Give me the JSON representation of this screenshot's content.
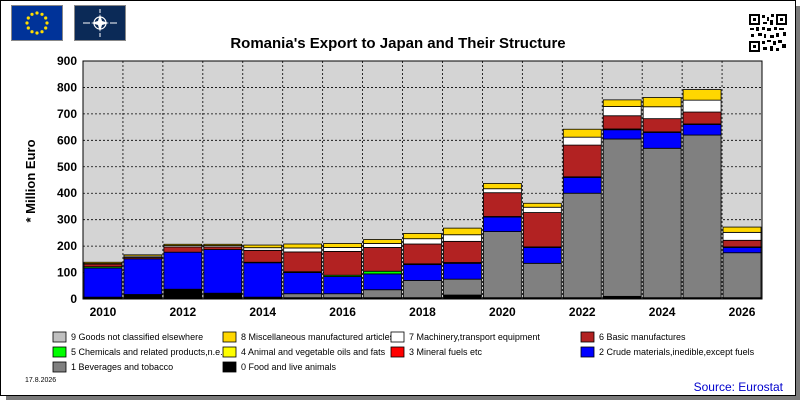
{
  "header": {
    "flags": [
      "eu-flag-icon",
      "nato-flag-icon"
    ],
    "qr": "qr-code-icon"
  },
  "footer": {
    "date": "17.8.2026",
    "source": "Source: Eurostat"
  },
  "colors": {
    "0": "#000000",
    "1": "#808080",
    "2": "#0000ff",
    "3": "#ff0000",
    "4": "#ffff00",
    "5": "#00ff00",
    "6": "#b22222",
    "7": "#ffffff",
    "8": "#ffd700",
    "9": "#c0c0c0"
  },
  "chart_data": {
    "type": "bar",
    "stacked": true,
    "title": "Romania's Export to Japan and Their Structure",
    "ylabel": "* Million Euro",
    "ylim": [
      0,
      900
    ],
    "yticks": [
      0,
      100,
      200,
      300,
      400,
      500,
      600,
      700,
      800,
      900
    ],
    "grid": true,
    "legend_position": "bottom",
    "categories": [
      "2010",
      "2011",
      "2012",
      "2013",
      "2014",
      "2015",
      "2016",
      "2017",
      "2018",
      "2019",
      "2020",
      "2021",
      "2022",
      "2023",
      "2024",
      "2025",
      "2026"
    ],
    "x_tick_labels": [
      "2010",
      "2012",
      "2014",
      "2016",
      "2018",
      "2020",
      "2022",
      "2024",
      "2026"
    ],
    "series": [
      {
        "key": "0",
        "name": "0 Food and live animals",
        "values": [
          5,
          15,
          35,
          20,
          5,
          5,
          5,
          5,
          5,
          15,
          5,
          5,
          5,
          10,
          5,
          5,
          5
        ]
      },
      {
        "key": "1",
        "name": "1 Beverages and tobacco",
        "values": [
          2,
          2,
          2,
          2,
          2,
          15,
          15,
          30,
          65,
          60,
          250,
          130,
          395,
          595,
          565,
          615,
          170
        ]
      },
      {
        "key": "2",
        "name": "2 Crude materials,inedible,except fuels",
        "values": [
          110,
          135,
          140,
          165,
          130,
          80,
          65,
          60,
          60,
          60,
          55,
          60,
          60,
          35,
          60,
          40,
          20
        ]
      },
      {
        "key": "3",
        "name": "3 Mineral fuels etc",
        "values": [
          0,
          0,
          0,
          0,
          0,
          0,
          0,
          0,
          0,
          0,
          0,
          0,
          0,
          0,
          0,
          0,
          0
        ]
      },
      {
        "key": "4",
        "name": "4 Animal and vegetable oils and fats",
        "values": [
          0,
          0,
          0,
          0,
          0,
          0,
          0,
          0,
          0,
          0,
          0,
          0,
          0,
          0,
          0,
          0,
          0
        ]
      },
      {
        "key": "5",
        "name": "5 Chemicals and related products,n.e.s.",
        "values": [
          5,
          0,
          0,
          0,
          2,
          3,
          5,
          10,
          3,
          3,
          2,
          2,
          2,
          3,
          2,
          2,
          2
        ]
      },
      {
        "key": "6",
        "name": "6 Basic manufactures",
        "values": [
          10,
          5,
          20,
          10,
          45,
          75,
          90,
          90,
          75,
          80,
          90,
          130,
          120,
          50,
          50,
          45,
          25
        ]
      },
      {
        "key": "7",
        "name": "7 Machinery,transport equipment",
        "values": [
          2,
          5,
          5,
          5,
          10,
          15,
          15,
          15,
          20,
          25,
          15,
          20,
          30,
          35,
          45,
          45,
          30
        ]
      },
      {
        "key": "8",
        "name": "8 Miscellaneous manufactured articles",
        "values": [
          5,
          5,
          5,
          5,
          10,
          15,
          15,
          15,
          20,
          25,
          20,
          15,
          30,
          25,
          35,
          40,
          20
        ]
      },
      {
        "key": "9",
        "name": "9 Goods not classified elsewhere",
        "values": [
          0,
          0,
          0,
          0,
          0,
          0,
          0,
          0,
          0,
          0,
          0,
          0,
          0,
          0,
          0,
          0,
          0
        ]
      }
    ],
    "legend": [
      {
        "key": "9",
        "label": "9 Goods not classified elsewhere"
      },
      {
        "key": "8",
        "label": "8 Miscellaneous manufactured articles"
      },
      {
        "key": "7",
        "label": "7 Machinery,transport equipment"
      },
      {
        "key": "6",
        "label": "6 Basic manufactures"
      },
      {
        "key": "5",
        "label": "5 Chemicals and related products,n.e.s."
      },
      {
        "key": "4",
        "label": "4 Animal and vegetable oils and fats"
      },
      {
        "key": "3",
        "label": "3 Mineral fuels etc"
      },
      {
        "key": "2",
        "label": "2 Crude materials,inedible,except fuels"
      },
      {
        "key": "1",
        "label": "1 Beverages and tobacco"
      },
      {
        "key": "0",
        "label": "0 Food and live animals"
      }
    ]
  }
}
